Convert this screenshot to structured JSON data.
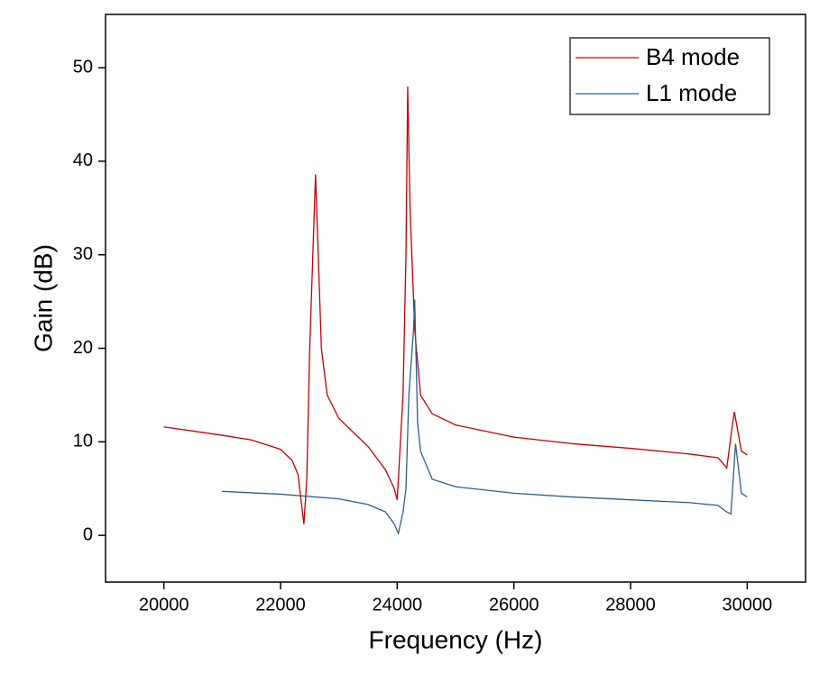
{
  "chart_data": {
    "type": "line",
    "x_label": "Frequency (Hz)",
    "y_label": "Gain (dB)",
    "xlim": [
      19000,
      31000
    ],
    "xticks": [
      20000,
      22000,
      24000,
      26000,
      28000,
      30000
    ],
    "ylim": [
      -5,
      55.7
    ],
    "yticks": [
      0,
      10,
      20,
      30,
      40,
      50
    ],
    "legend": "upper right",
    "series": [
      {
        "name": "B4 mode",
        "color": "#c00000",
        "x": [
          20000,
          21000,
          21500,
          22000,
          22200,
          22300,
          22400,
          22450,
          22500,
          22600,
          22700,
          22800,
          23000,
          23500,
          23800,
          23950,
          24000,
          24100,
          24150,
          24180,
          24220,
          24300,
          24400,
          24600,
          25000,
          26000,
          27000,
          28000,
          29000,
          29500,
          29650,
          29750,
          29780,
          29900,
          30000
        ],
        "values": [
          11.6,
          10.7,
          10.2,
          9.2,
          8.0,
          6.5,
          1.2,
          6,
          20,
          38.6,
          20,
          15,
          12.5,
          9.5,
          7,
          5,
          3.8,
          15,
          30,
          48,
          35,
          22,
          15,
          13,
          11.8,
          10.5,
          9.8,
          9.3,
          8.7,
          8.3,
          7.2,
          12,
          13.2,
          9,
          8.6
        ]
      },
      {
        "name": "L1 mode",
        "color": "#2e5e8a",
        "x": [
          21000,
          22000,
          23000,
          23500,
          23800,
          23950,
          24020,
          24100,
          24150,
          24200,
          24280,
          24300,
          24350,
          24400,
          24600,
          25000,
          26000,
          27000,
          28000,
          29000,
          29500,
          29650,
          29720,
          29800,
          29900,
          30000
        ],
        "values": [
          4.7,
          4.4,
          3.9,
          3.3,
          2.5,
          1.2,
          0.2,
          2.5,
          5,
          15,
          22,
          25.2,
          12,
          9,
          6,
          5.2,
          4.5,
          4.1,
          3.8,
          3.5,
          3.2,
          2.5,
          2.3,
          9.8,
          4.5,
          4.1
        ]
      }
    ]
  }
}
